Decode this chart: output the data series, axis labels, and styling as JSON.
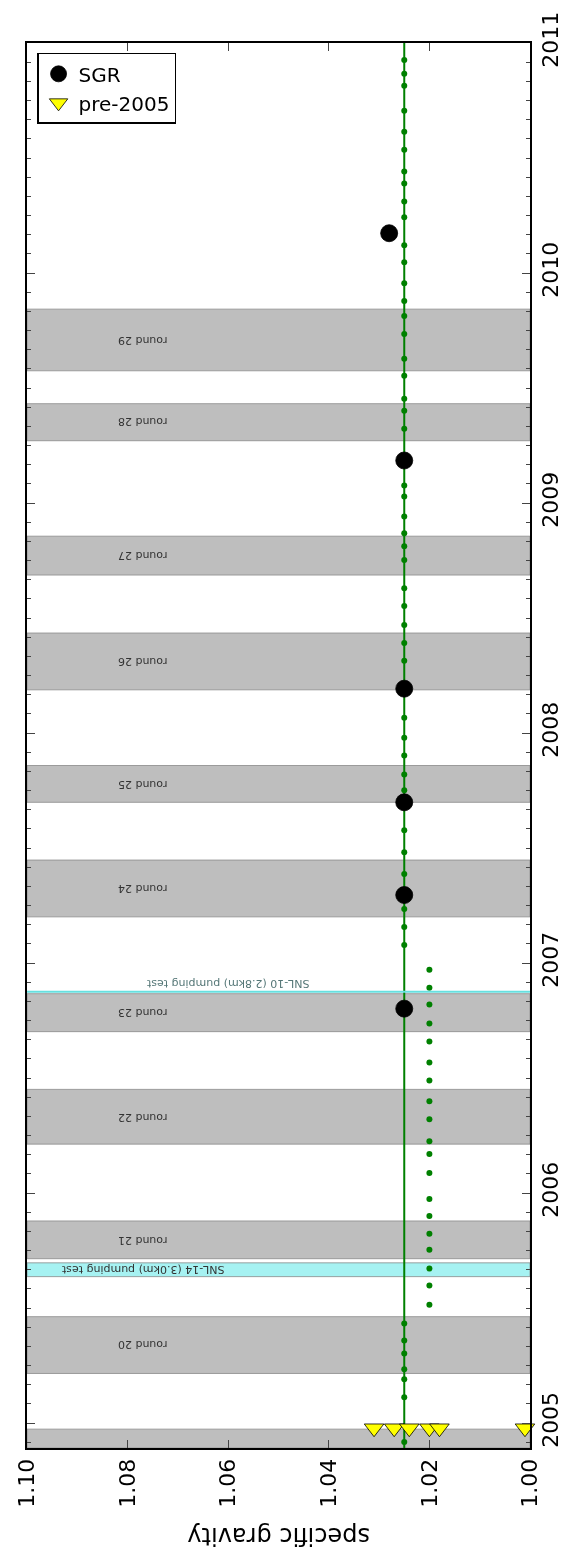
{
  "chart_data": {
    "type": "scatter",
    "xlabel": "specific gravity",
    "xlim": [
      1.1,
      1.0
    ],
    "xticks": [
      {
        "value": 1.1,
        "label": "1.10"
      },
      {
        "value": 1.08,
        "label": "1.08"
      },
      {
        "value": 1.06,
        "label": "1.06"
      },
      {
        "value": 1.04,
        "label": "1.04"
      },
      {
        "value": 1.02,
        "label": "1.02"
      },
      {
        "value": 1.0,
        "label": "1.00"
      }
    ],
    "ylim": [
      2004.892,
      2011.0
    ],
    "yticks": [
      2005,
      2006,
      2007,
      2008,
      2009,
      2010,
      2011
    ],
    "grid": false,
    "legend": "top left",
    "series": [
      {
        "name": "SGR",
        "color": "#000000",
        "marker": "circle",
        "x": [
          1.028,
          1.025,
          1.025,
          1.025,
          1.025,
          1.025
        ],
        "values": [
          2010.173,
          2009.185,
          2008.193,
          2007.699,
          2007.296,
          2006.802
        ]
      },
      {
        "name": "pre-2005",
        "color": "#ffff00",
        "marker": "triangle",
        "x": [
          1.031,
          1.027,
          1.024,
          1.02,
          1.018,
          1.001
        ],
        "values": [
          2004.978,
          2004.978,
          2004.978,
          2004.978,
          2004.978,
          2004.978
        ]
      },
      {
        "color": "#008000",
        "marker": "circle",
        "values": [
          2010.926,
          2010.866,
          2010.814,
          2010.705,
          2010.614,
          2010.536,
          2010.441,
          2010.389,
          2010.311,
          2010.242,
          2010.121,
          2010.047,
          2009.956,
          2009.878,
          2009.813,
          2009.735,
          2009.627,
          2009.553,
          2009.453,
          2009.401,
          2009.323,
          2009.076,
          2009.029,
          2008.942,
          2008.869,
          2008.812,
          2008.752,
          2008.63,
          2008.552,
          2008.47,
          2008.392,
          2008.314,
          2008.067,
          2007.98,
          2007.902,
          2007.82,
          2007.751,
          2007.578,
          2007.482,
          2007.387,
          2007.235,
          2007.157,
          2007.079,
          2006.971,
          2006.893,
          2006.82,
          2006.737,
          2006.659,
          2006.568,
          2006.49,
          2006.399,
          2006.321,
          2006.226,
          2006.17,
          2006.087,
          2005.975,
          2005.901,
          2005.823,
          2005.754,
          2005.672,
          2005.598,
          2005.515,
          2005.433,
          2005.359,
          2005.303,
          2005.234,
          2005.191,
          2005.113,
          2004.918
        ],
        "x": [
          1.025,
          1.025,
          1.025,
          1.025,
          1.025,
          1.025,
          1.025,
          1.025,
          1.025,
          1.025,
          1.025,
          1.025,
          1.025,
          1.025,
          1.025,
          1.025,
          1.025,
          1.025,
          1.025,
          1.025,
          1.025,
          1.025,
          1.025,
          1.025,
          1.025,
          1.025,
          1.025,
          1.025,
          1.025,
          1.025,
          1.025,
          1.025,
          1.025,
          1.025,
          1.025,
          1.025,
          1.025,
          1.025,
          1.025,
          1.025,
          1.025,
          1.025,
          1.025,
          1.02,
          1.02,
          1.02,
          1.02,
          1.02,
          1.02,
          1.02,
          1.02,
          1.02,
          1.02,
          1.02,
          1.02,
          1.02,
          1.02,
          1.02,
          1.02,
          1.02,
          1.02,
          1.02,
          1.025,
          1.025,
          1.025,
          1.025,
          1.025,
          1.025,
          1.025
        ]
      }
    ],
    "ref_lines": [
      {
        "axis": "x",
        "value": 1.025,
        "color": "#008000",
        "line_style": "solid"
      },
      {
        "axis": "y",
        "value": 2006.876,
        "label": "SNL-10 (2.8km) pumping test",
        "color": "#66e0e0"
      }
    ],
    "bands": [
      {
        "axis": "y",
        "from": 2004.892,
        "to": 2004.974,
        "color": "#bebebe"
      },
      {
        "axis": "y",
        "from": 2005.216,
        "to": 2005.463,
        "label": "round 20",
        "color": "#bebebe"
      },
      {
        "axis": "y",
        "from": 2005.637,
        "to": 2005.697,
        "label": "SNL-14 (3.0km) pumping test",
        "color": "#a6f2f2"
      },
      {
        "axis": "y",
        "from": 2005.715,
        "to": 2005.879,
        "label": "round 21",
        "color": "#bebebe"
      },
      {
        "axis": "y",
        "from": 2006.213,
        "to": 2006.451,
        "label": "round 22",
        "color": "#bebebe"
      },
      {
        "axis": "y",
        "from": 2006.702,
        "to": 2006.867,
        "label": "round 23",
        "color": "#bebebe"
      },
      {
        "axis": "y",
        "from": 2007.201,
        "to": 2007.448,
        "label": "round 24",
        "color": "#bebebe"
      },
      {
        "axis": "y",
        "from": 2007.699,
        "to": 2007.859,
        "label": "round 25",
        "color": "#bebebe"
      },
      {
        "axis": "y",
        "from": 2008.188,
        "to": 2008.435,
        "label": "round 26",
        "color": "#bebebe"
      },
      {
        "axis": "y",
        "from": 2008.687,
        "to": 2008.856,
        "label": "round 27",
        "color": "#bebebe"
      },
      {
        "axis": "y",
        "from": 2009.271,
        "to": 2009.432,
        "label": "round 28",
        "color": "#bebebe"
      },
      {
        "axis": "y",
        "from": 2009.575,
        "to": 2009.843,
        "label": "round 29",
        "color": "#bebebe"
      }
    ]
  }
}
